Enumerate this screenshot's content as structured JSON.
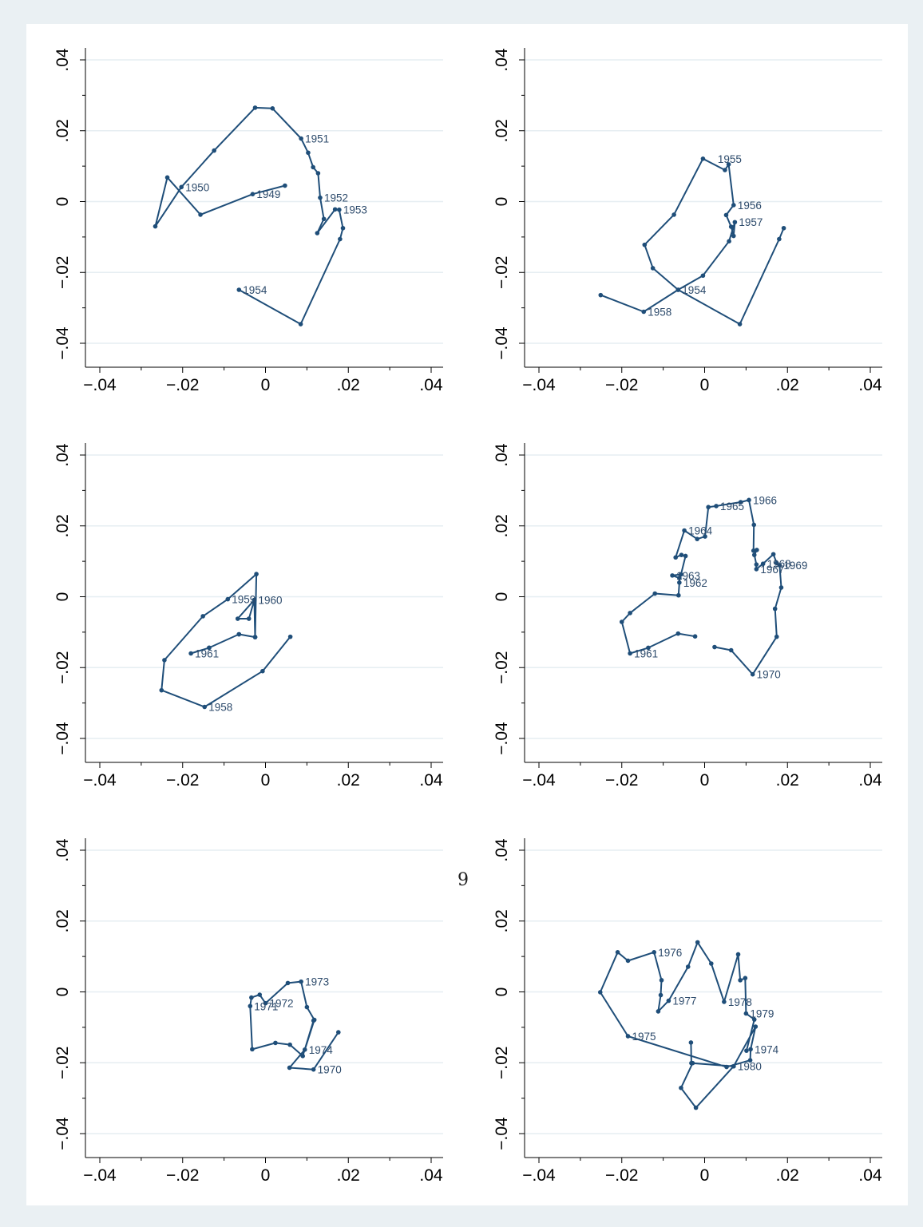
{
  "page_number": "9",
  "style": {
    "line_color": "#1f4e79",
    "label_color": "#2c4a6b",
    "grid_color": "#e6eef2",
    "axis_color": "#000000",
    "figure_background": "#ffffff",
    "outer_background": "#eaf0f3"
  },
  "chart_data": [
    {
      "type": "line",
      "xlim": [
        -0.04,
        0.04
      ],
      "ylim": [
        -0.04,
        0.04
      ],
      "xticks": [
        -0.04,
        -0.02,
        0,
        0.02,
        0.04
      ],
      "yticks": [
        -0.04,
        -0.02,
        0,
        0.02,
        0.04
      ],
      "xtick_labels": [
        "−.04",
        "−.02",
        "0",
        ".02",
        ".04"
      ],
      "ytick_labels": [
        "−.04",
        "−.02",
        "0",
        ".02",
        ".04"
      ],
      "grid": "horizontal",
      "points": [
        [
          0.0047,
          0.0045
        ],
        [
          -0.0031,
          0.0021
        ],
        [
          -0.0157,
          -0.0037
        ],
        [
          -0.0237,
          0.0068
        ],
        [
          -0.0266,
          -0.007
        ],
        [
          -0.0203,
          0.0041
        ],
        [
          -0.0124,
          0.0144
        ],
        [
          -0.0025,
          0.0265
        ],
        [
          0.0017,
          0.0263
        ],
        [
          0.0086,
          0.0178
        ],
        [
          0.0103,
          0.0138
        ],
        [
          0.0115,
          0.0097
        ],
        [
          0.0127,
          0.008
        ],
        [
          0.0132,
          0.0011
        ],
        [
          0.0141,
          -0.0049
        ],
        [
          0.0125,
          -0.0089
        ],
        [
          0.0168,
          -0.0022
        ],
        [
          0.0178,
          -0.0023
        ],
        [
          0.0187,
          -0.0075
        ],
        [
          0.018,
          -0.0106
        ],
        [
          0.0085,
          -0.0346
        ],
        [
          -0.0064,
          -0.0249
        ]
      ],
      "labels": [
        {
          "text": "1949",
          "x": -0.0031,
          "y": 0.0021
        },
        {
          "text": "1950",
          "x": -0.0203,
          "y": 0.0041
        },
        {
          "text": "1951",
          "x": 0.0086,
          "y": 0.0178
        },
        {
          "text": "1952",
          "x": 0.0132,
          "y": 0.0011
        },
        {
          "text": "1953",
          "x": 0.0178,
          "y": -0.0023
        },
        {
          "text": "1954",
          "x": -0.0064,
          "y": -0.0249
        }
      ]
    },
    {
      "type": "line",
      "xlim": [
        -0.04,
        0.04
      ],
      "ylim": [
        -0.04,
        0.04
      ],
      "xticks": [
        -0.04,
        -0.02,
        0,
        0.02,
        0.04
      ],
      "yticks": [
        -0.04,
        -0.02,
        0,
        0.02,
        0.04
      ],
      "xtick_labels": [
        "−.04",
        "−.02",
        "0",
        ".02",
        ".04"
      ],
      "ytick_labels": [
        "−.04",
        "−.02",
        "0",
        ".02",
        ".04"
      ],
      "grid": "horizontal",
      "points": [
        [
          0.0191,
          -0.0075
        ],
        [
          0.018,
          -0.0106
        ],
        [
          0.0085,
          -0.0346
        ],
        [
          -0.0064,
          -0.0249
        ],
        [
          -0.0125,
          -0.0188
        ],
        [
          -0.0145,
          -0.0122
        ],
        [
          -0.0074,
          -0.0037
        ],
        [
          -0.0004,
          0.0121
        ],
        [
          0.0049,
          0.0089
        ],
        [
          0.0058,
          0.0105
        ],
        [
          0.007,
          -0.001
        ],
        [
          0.0052,
          -0.0038
        ],
        [
          0.0064,
          -0.0071
        ],
        [
          0.007,
          -0.0097
        ],
        [
          0.0073,
          -0.0058
        ],
        [
          0.0059,
          -0.0112
        ],
        [
          -0.0004,
          -0.0209
        ],
        [
          -0.0064,
          -0.0249
        ],
        [
          -0.0147,
          -0.0311
        ],
        [
          -0.0251,
          -0.0264
        ]
      ],
      "labels": [
        {
          "text": "1954",
          "x": -0.0064,
          "y": -0.0249
        },
        {
          "text": "1955",
          "x": 0.0022,
          "y": 0.0121
        },
        {
          "text": "1956",
          "x": 0.007,
          "y": -0.001
        },
        {
          "text": "1957",
          "x": 0.0073,
          "y": -0.0058
        },
        {
          "text": "1958",
          "x": -0.0147,
          "y": -0.0311
        }
      ]
    },
    {
      "type": "line",
      "xlim": [
        -0.04,
        0.04
      ],
      "ylim": [
        -0.04,
        0.04
      ],
      "xticks": [
        -0.04,
        -0.02,
        0,
        0.02,
        0.04
      ],
      "yticks": [
        -0.04,
        -0.02,
        0,
        0.02,
        0.04
      ],
      "xtick_labels": [
        "−.04",
        "−.02",
        "0",
        ".02",
        ".04"
      ],
      "ytick_labels": [
        "−.04",
        "−.02",
        "0",
        ".02",
        ".04"
      ],
      "grid": "horizontal",
      "points": [
        [
          0.006,
          -0.0113
        ],
        [
          -0.0007,
          -0.021
        ],
        [
          -0.0147,
          -0.0311
        ],
        [
          -0.0251,
          -0.0264
        ],
        [
          -0.0244,
          -0.0179
        ],
        [
          -0.0151,
          -0.0055
        ],
        [
          -0.0091,
          -0.0007
        ],
        [
          -0.0022,
          0.0064
        ],
        [
          -0.0025,
          -0.0114
        ],
        [
          -0.0064,
          -0.0106
        ],
        [
          -0.0136,
          -0.0144
        ],
        [
          -0.018,
          -0.016
        ],
        [
          -0.0136,
          -0.0144
        ],
        [
          -0.0064,
          -0.0106
        ],
        [
          -0.0025,
          -0.0114
        ],
        [
          -0.0027,
          -0.0009
        ],
        [
          -0.004,
          -0.0062
        ],
        [
          -0.0067,
          -0.0062
        ],
        [
          -0.0027,
          -0.0009
        ]
      ],
      "labels": [
        {
          "text": "1958",
          "x": -0.0147,
          "y": -0.0311
        },
        {
          "text": "1959",
          "x": -0.0091,
          "y": -0.0007
        },
        {
          "text": "1960",
          "x": -0.0027,
          "y": -0.0009
        },
        {
          "text": "1961",
          "x": -0.018,
          "y": -0.016
        }
      ]
    },
    {
      "type": "line",
      "xlim": [
        -0.04,
        0.04
      ],
      "ylim": [
        -0.04,
        0.04
      ],
      "xticks": [
        -0.04,
        -0.02,
        0,
        0.02,
        0.04
      ],
      "yticks": [
        -0.04,
        -0.02,
        0,
        0.02,
        0.04
      ],
      "xtick_labels": [
        "−.04",
        "−.02",
        "0",
        ".02",
        ".04"
      ],
      "ytick_labels": [
        "−.04",
        "−.02",
        "0",
        ".02",
        ".04"
      ],
      "grid": "horizontal",
      "points": [
        [
          -0.0023,
          -0.0112
        ],
        [
          -0.0064,
          -0.0104
        ],
        [
          -0.0136,
          -0.0144
        ],
        [
          -0.018,
          -0.016
        ],
        [
          -0.02,
          -0.0071
        ],
        [
          -0.018,
          -0.0046
        ],
        [
          -0.012,
          0.0009
        ],
        [
          -0.0063,
          0.0004
        ],
        [
          -0.0061,
          0.004
        ],
        [
          -0.0061,
          0.0053
        ],
        [
          -0.0078,
          0.006
        ],
        [
          -0.0057,
          0.0063
        ],
        [
          -0.0046,
          0.0115
        ],
        [
          -0.0056,
          0.0118
        ],
        [
          -0.007,
          0.0111
        ],
        [
          -0.0049,
          0.0187
        ],
        [
          -0.0018,
          0.0163
        ],
        [
          0.0001,
          0.017
        ],
        [
          0.0009,
          0.0253
        ],
        [
          0.0028,
          0.0256
        ],
        [
          0.0087,
          0.0267
        ],
        [
          0.0107,
          0.0273
        ],
        [
          0.0119,
          0.0203
        ],
        [
          0.0118,
          0.013
        ],
        [
          0.0126,
          0.0132
        ],
        [
          0.012,
          0.0118
        ],
        [
          0.0125,
          0.0091
        ],
        [
          0.0125,
          0.0078
        ],
        [
          0.0141,
          0.0093
        ],
        [
          0.0166,
          0.012
        ],
        [
          0.0174,
          0.0095
        ],
        [
          0.0181,
          0.0089
        ],
        [
          0.0185,
          0.0026
        ],
        [
          0.017,
          -0.0034
        ],
        [
          0.0174,
          -0.0113
        ],
        [
          0.0116,
          -0.0219
        ],
        [
          0.0064,
          -0.0151
        ],
        [
          0.0024,
          -0.0142
        ]
      ],
      "labels": [
        {
          "text": "1961",
          "x": -0.018,
          "y": -0.016
        },
        {
          "text": "1962",
          "x": -0.0061,
          "y": 0.004
        },
        {
          "text": "1963",
          "x": -0.0078,
          "y": 0.006
        },
        {
          "text": "1964",
          "x": -0.0049,
          "y": 0.0187
        },
        {
          "text": "1965",
          "x": 0.0028,
          "y": 0.0256
        },
        {
          "text": "1966",
          "x": 0.0107,
          "y": 0.0273
        },
        {
          "text": "1967",
          "x": 0.0125,
          "y": 0.0078
        },
        {
          "text": "1968",
          "x": 0.0141,
          "y": 0.0093
        },
        {
          "text": "1969",
          "x": 0.0181,
          "y": 0.0089
        },
        {
          "text": "1970",
          "x": 0.0116,
          "y": -0.0219
        }
      ]
    },
    {
      "type": "line",
      "xlim": [
        -0.04,
        0.04
      ],
      "ylim": [
        -0.04,
        0.04
      ],
      "xticks": [
        -0.04,
        -0.02,
        0,
        0.02,
        0.04
      ],
      "yticks": [
        -0.04,
        -0.02,
        0,
        0.02,
        0.04
      ],
      "xtick_labels": [
        "−.04",
        "−.02",
        "0",
        ".02",
        ".04"
      ],
      "ytick_labels": [
        "−.04",
        "−.02",
        "0",
        ".02",
        ".04"
      ],
      "grid": "horizontal",
      "points": [
        [
          0.0176,
          -0.0114
        ],
        [
          0.0116,
          -0.0219
        ],
        [
          0.0058,
          -0.0214
        ],
        [
          0.0095,
          -0.0163
        ],
        [
          0.0118,
          -0.0079
        ],
        [
          0.01,
          -0.0043
        ],
        [
          0.0086,
          0.0029
        ],
        [
          0.0054,
          0.0025
        ],
        [
          0.0,
          -0.0032
        ],
        [
          -0.0014,
          -0.0008
        ],
        [
          -0.0034,
          -0.0016
        ],
        [
          -0.0037,
          -0.004
        ],
        [
          -0.0032,
          -0.0162
        ],
        [
          0.0024,
          -0.0144
        ],
        [
          0.0059,
          -0.0149
        ],
        [
          0.009,
          -0.0181
        ],
        [
          0.0116,
          -0.0081
        ]
      ],
      "labels": [
        {
          "text": "1970",
          "x": 0.0116,
          "y": -0.0219
        },
        {
          "text": "1971",
          "x": -0.0037,
          "y": -0.004
        },
        {
          "text": "1972",
          "x": 0.0,
          "y": -0.0032
        },
        {
          "text": "1973",
          "x": 0.0086,
          "y": 0.0029
        },
        {
          "text": "1974",
          "x": 0.0095,
          "y": -0.0163
        }
      ]
    },
    {
      "type": "line",
      "xlim": [
        -0.04,
        0.04
      ],
      "ylim": [
        -0.04,
        0.04
      ],
      "xticks": [
        -0.04,
        -0.02,
        0,
        0.02,
        0.04
      ],
      "yticks": [
        -0.04,
        -0.02,
        0,
        0.02,
        0.04
      ],
      "xtick_labels": [
        "−.04",
        "−.02",
        "0",
        ".02",
        ".04"
      ],
      "ytick_labels": [
        "−.04",
        "−.02",
        "0",
        ".02",
        ".04"
      ],
      "grid": "horizontal",
      "points": [
        [
          0.0101,
          -0.0166
        ],
        [
          0.012,
          -0.0078
        ],
        [
          0.01,
          -0.0061
        ],
        [
          0.0098,
          0.0039
        ],
        [
          0.0086,
          0.0033
        ],
        [
          0.0081,
          0.0106
        ],
        [
          0.0047,
          -0.0028
        ],
        [
          0.0016,
          0.008
        ],
        [
          -0.0017,
          0.014
        ],
        [
          -0.004,
          0.0071
        ],
        [
          -0.0087,
          -0.0025
        ],
        [
          -0.0112,
          -0.0055
        ],
        [
          -0.0106,
          -0.0009
        ],
        [
          -0.0104,
          0.0033
        ],
        [
          -0.0122,
          0.0112
        ],
        [
          -0.0185,
          0.0088
        ],
        [
          -0.021,
          0.0112
        ],
        [
          -0.0252,
          -0.0001
        ],
        [
          -0.0185,
          -0.0125
        ],
        [
          0.0053,
          -0.0212
        ],
        [
          0.011,
          -0.0193
        ],
        [
          0.0111,
          -0.0162
        ],
        [
          0.0123,
          -0.0098
        ],
        [
          0.007,
          -0.021
        ],
        [
          -0.0029,
          -0.0201
        ],
        [
          -0.0057,
          -0.0271
        ],
        [
          -0.0021,
          -0.0327
        ],
        [
          0.007,
          -0.021
        ],
        [
          -0.0032,
          -0.0201
        ],
        [
          -0.0033,
          -0.0143
        ]
      ],
      "labels": [
        {
          "text": "1974",
          "x": 0.0111,
          "y": -0.0162
        },
        {
          "text": "1975",
          "x": -0.0185,
          "y": -0.0125
        },
        {
          "text": "1976",
          "x": -0.0122,
          "y": 0.0112
        },
        {
          "text": "1977",
          "x": -0.0087,
          "y": -0.0025
        },
        {
          "text": "1978",
          "x": 0.0047,
          "y": -0.0028
        },
        {
          "text": "1979",
          "x": 0.01,
          "y": -0.0061
        },
        {
          "text": "1980",
          "x": 0.007,
          "y": -0.021
        }
      ]
    }
  ]
}
